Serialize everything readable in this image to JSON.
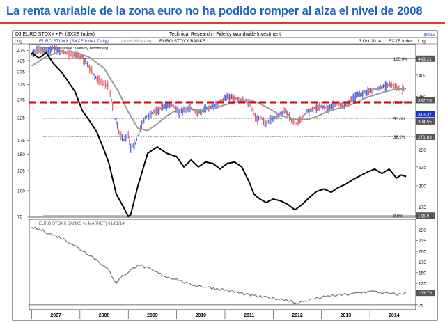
{
  "headline": "La renta variable de la zona euro no ha podido romper al alza el nivel de 2008",
  "colors": {
    "headline": "#1f5fc0",
    "rule": "#e23a2a",
    "index_line": "#000000",
    "ma_line": "#9a9a9a",
    "bar_up": "#3a5ad8",
    "bar_down": "#e0555a",
    "resistance": "#e00000",
    "level_grid": "#777777",
    "ratio_line": "#777777",
    "tag_bg": "#555555",
    "tag_highlight": "#2233cc"
  },
  "header": {
    "left": "DJ EURO STOXX • Pr (SXXE Index)",
    "center": "Technical Research - Fidelity Worldwide Investment",
    "date": "3 Oct 2014",
    "ticker": "SXXE Index",
    "brand": "updata"
  },
  "upper_panel": {
    "legend_series": "EURO STOXX (SXXE Index Daily)",
    "legend_ma": "40 wk Mov Avg",
    "legend_banks": "EURO STOXX BANKS",
    "source": "Updata Professional : Data by Bloomberg",
    "left_axis_title": "Log",
    "right_axis_title": "Log"
  },
  "lower_panel": {
    "title": "EURO STOXX BANKS vs MARKET) 01/01/14"
  },
  "chart_data": [
    {
      "type": "line",
      "title": "EURO STOXX (SXXE Index Daily)",
      "scale": "log",
      "left_axis": {
        "ticks": [
          475,
          425,
          375,
          325,
          275,
          225,
          175,
          150,
          125,
          100,
          75
        ],
        "range": [
          75,
          500
        ]
      },
      "right_axis": {
        "ticks": [
          400,
          350,
          300,
          250,
          225,
          200,
          175
        ],
        "range": [
          165,
          480
        ]
      },
      "x_ticks": [
        "2007",
        "2008",
        "2009",
        "2010",
        "2011",
        "2012",
        "2013",
        "2014"
      ],
      "series": [
        {
          "name": "EURO STOXX (SXXE Index Daily)",
          "style": "bars",
          "axis": "left",
          "x": [
            2007.0,
            2007.15,
            2007.3,
            2007.45,
            2007.6,
            2007.75,
            2007.9,
            2008.05,
            2008.2,
            2008.35,
            2008.5,
            2008.6,
            2008.7,
            2008.8,
            2008.9,
            2009.0,
            2009.05,
            2009.15,
            2009.25,
            2009.35,
            2009.45,
            2009.6,
            2009.75,
            2009.9,
            2010.05,
            2010.15,
            2010.3,
            2010.45,
            2010.6,
            2010.75,
            2010.9,
            2011.05,
            2011.2,
            2011.35,
            2011.5,
            2011.65,
            2011.75,
            2011.85,
            2011.95,
            2012.1,
            2012.25,
            2012.4,
            2012.45,
            2012.55,
            2012.7,
            2012.85,
            2013.0,
            2013.15,
            2013.3,
            2013.45,
            2013.55,
            2013.7,
            2013.85,
            2014.0,
            2014.15,
            2014.3,
            2014.45,
            2014.55,
            2014.65,
            2014.75
          ],
          "values": [
            455,
            480,
            470,
            490,
            470,
            460,
            455,
            440,
            390,
            345,
            330,
            320,
            230,
            195,
            175,
            190,
            160,
            170,
            200,
            225,
            235,
            245,
            255,
            260,
            240,
            245,
            250,
            235,
            250,
            255,
            270,
            285,
            280,
            275,
            265,
            220,
            225,
            210,
            220,
            230,
            245,
            215,
            210,
            220,
            240,
            250,
            255,
            250,
            265,
            255,
            265,
            285,
            295,
            305,
            310,
            320,
            325,
            318,
            308,
            312
          ]
        },
        {
          "name": "40 wk Mov Avg",
          "axis": "left",
          "x": [
            2007.0,
            2007.3,
            2007.6,
            2007.9,
            2008.2,
            2008.5,
            2008.8,
            2009.0,
            2009.2,
            2009.4,
            2009.6,
            2009.8,
            2010.0,
            2010.2,
            2010.5,
            2010.8,
            2011.0,
            2011.3,
            2011.5,
            2011.7,
            2011.9,
            2012.1,
            2012.3,
            2012.5,
            2012.7,
            2012.9,
            2013.1,
            2013.3,
            2013.5,
            2013.7,
            2013.9,
            2014.1,
            2014.3,
            2014.5,
            2014.75
          ],
          "values": [
            400,
            445,
            470,
            468,
            440,
            390,
            300,
            240,
            200,
            195,
            210,
            230,
            245,
            250,
            245,
            250,
            260,
            270,
            275,
            265,
            250,
            235,
            225,
            220,
            220,
            228,
            240,
            248,
            255,
            265,
            280,
            290,
            300,
            308,
            312
          ]
        },
        {
          "name": "EURO STOXX BANKS",
          "axis": "right",
          "x": [
            2007.0,
            2007.15,
            2007.3,
            2007.45,
            2007.6,
            2007.75,
            2007.9,
            2008.05,
            2008.2,
            2008.35,
            2008.5,
            2008.6,
            2008.75,
            2008.9,
            2009.0,
            2009.05,
            2009.2,
            2009.4,
            2009.6,
            2009.8,
            2010.0,
            2010.15,
            2010.3,
            2010.45,
            2010.6,
            2010.75,
            2010.9,
            2011.05,
            2011.2,
            2011.35,
            2011.5,
            2011.6,
            2011.7,
            2011.85,
            2012.0,
            2012.15,
            2012.3,
            2012.45,
            2012.6,
            2012.75,
            2012.9,
            2013.05,
            2013.2,
            2013.35,
            2013.5,
            2013.65,
            2013.8,
            2013.95,
            2014.1,
            2014.25,
            2014.4,
            2014.55,
            2014.65,
            2014.75
          ],
          "values": [
            460,
            445,
            460,
            430,
            410,
            385,
            360,
            320,
            300,
            280,
            250,
            230,
            190,
            175,
            165,
            167,
            200,
            245,
            255,
            245,
            240,
            225,
            235,
            225,
            232,
            230,
            222,
            230,
            232,
            225,
            205,
            190,
            185,
            180,
            184,
            182,
            178,
            172,
            178,
            186,
            193,
            196,
            192,
            198,
            202,
            208,
            213,
            218,
            222,
            216,
            222,
            210,
            214,
            212
          ]
        }
      ],
      "levels": [
        {
          "label": "100.0%",
          "value": 443.21
        },
        {
          "label": "61.8%",
          "value": 337.28
        },
        {
          "label": "50.0%",
          "value": 304.55
        },
        {
          "label": "38.2%",
          "value": 271.83
        },
        {
          "label": "0.0%",
          "value": 165.9
        }
      ],
      "right_tags": [
        "443.21",
        "337.28",
        "313.37",
        "304.55",
        "271.83",
        "165.9"
      ]
    },
    {
      "type": "line",
      "title": "EURO STOXX BANKS vs MARKET) 01/01/14",
      "y_ticks": [
        250,
        225,
        200,
        175,
        150,
        125,
        100,
        75
      ],
      "ylim": [
        65,
        270
      ],
      "last_value_tag": "103.79",
      "series": [
        {
          "x": [
            2007.0,
            2007.2,
            2007.4,
            2007.6,
            2007.8,
            2008.0,
            2008.2,
            2008.4,
            2008.6,
            2008.75,
            2008.85,
            2009.0,
            2009.2,
            2009.4,
            2009.6,
            2009.8,
            2010.0,
            2010.2,
            2010.4,
            2010.6,
            2010.8,
            2011.0,
            2011.2,
            2011.4,
            2011.6,
            2011.8,
            2012.0,
            2012.2,
            2012.35,
            2012.45,
            2012.6,
            2012.8,
            2013.0,
            2013.2,
            2013.4,
            2013.6,
            2013.8,
            2014.0,
            2014.2,
            2014.4,
            2014.6,
            2014.75
          ],
          "values": [
            255,
            250,
            240,
            232,
            220,
            205,
            192,
            175,
            155,
            125,
            140,
            150,
            170,
            160,
            150,
            140,
            135,
            125,
            120,
            117,
            113,
            110,
            105,
            100,
            96,
            93,
            90,
            88,
            85,
            78,
            82,
            88,
            92,
            96,
            98,
            100,
            103,
            107,
            104,
            101,
            99,
            103
          ]
        }
      ]
    }
  ]
}
